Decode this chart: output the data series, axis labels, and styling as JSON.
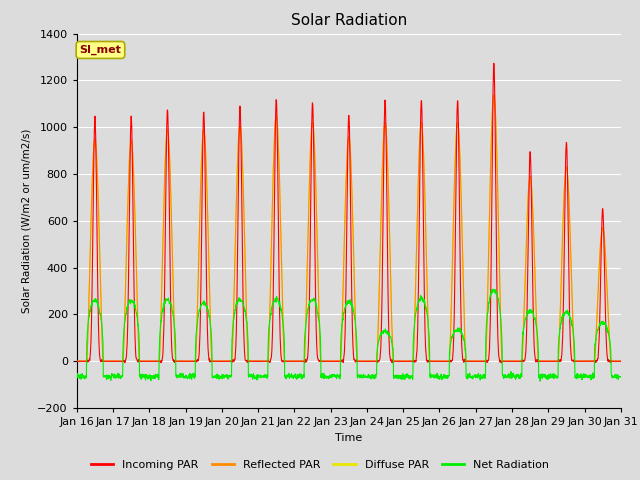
{
  "title": "Solar Radiation",
  "xlabel": "Time",
  "ylabel": "Solar Radiation (W/m2 or um/m2/s)",
  "ylim": [
    -200,
    1400
  ],
  "background_color": "#dcdcdc",
  "plot_bg_color": "#dcdcdc",
  "grid_color": "#ffffff",
  "tick_labels": [
    "Jan 16",
    "Jan 17",
    "Jan 18",
    "Jan 19",
    "Jan 20",
    "Jan 21",
    "Jan 22",
    "Jan 23",
    "Jan 24",
    "Jan 25",
    "Jan 26",
    "Jan 27",
    "Jan 28",
    "Jan 29",
    "Jan 30",
    "Jan 31"
  ],
  "station_label": "SI_met",
  "legend_entries": [
    "Incoming PAR",
    "Reflected PAR",
    "Diffuse PAR",
    "Net Radiation"
  ],
  "line_colors": [
    "#ff0000",
    "#ff8c00",
    "#e8e800",
    "#00ee00"
  ],
  "day_peak_incoming": [
    1040,
    1045,
    1075,
    1065,
    1090,
    1120,
    1105,
    1055,
    1115,
    1115,
    1115,
    1275,
    895,
    935,
    650
  ],
  "day_peak_reflected": [
    950,
    945,
    990,
    990,
    1010,
    1050,
    1020,
    960,
    1020,
    1020,
    1020,
    1140,
    790,
    830,
    570
  ],
  "day_peak_diffuse": [
    940,
    940,
    985,
    985,
    1005,
    1045,
    1015,
    955,
    1015,
    1015,
    1015,
    1135,
    785,
    825,
    565
  ],
  "day_peak_net": [
    260,
    260,
    265,
    250,
    265,
    265,
    265,
    255,
    130,
    270,
    135,
    305,
    215,
    210,
    165
  ],
  "night_base_net": -65,
  "hours_per_day": 24,
  "num_days": 15,
  "samples_per_hour": 6,
  "day_start": 6.5,
  "day_end": 17.5,
  "peak_sharpness": 8.0
}
